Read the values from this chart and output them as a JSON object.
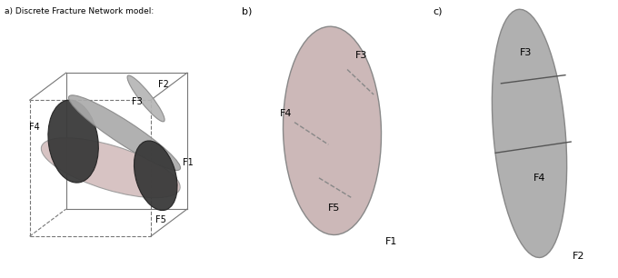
{
  "fig_width": 6.8,
  "fig_height": 3.06,
  "dpi": 100,
  "background_color": "#ffffff",
  "panel_a": {
    "label": "a) Discrete Fracture Network model:",
    "F1_color": "#d4bebe",
    "F2_color": "#b8b8b8",
    "F3_color": "#b0b0b0",
    "F4_dark_color": "#3a3a3a",
    "F5_dark_color": "#3a3a3a"
  },
  "panel_b": {
    "label": "b)",
    "ellipse_color": "#ccb8b8",
    "ellipse_edge": "#888888"
  },
  "panel_c": {
    "label": "c)",
    "ellipse_color": "#b0b0b0",
    "ellipse_edge": "#888888"
  }
}
